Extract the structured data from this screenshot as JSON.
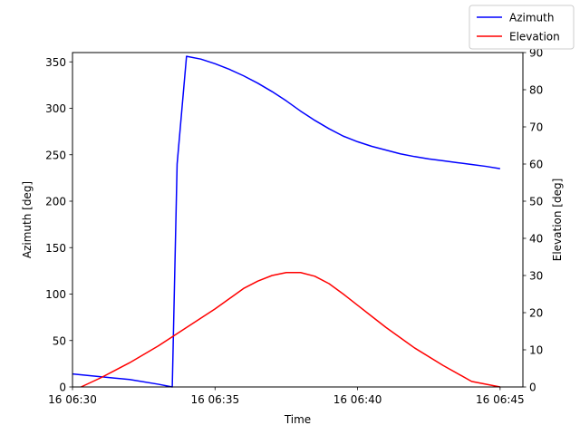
{
  "chart_data": {
    "type": "line",
    "title": "",
    "xlabel": "Time",
    "ylabel_left": "Azimuth [deg]",
    "ylabel_right": "Elevation [deg]",
    "xlim": [
      0,
      15.8
    ],
    "ylim_left": [
      0,
      360
    ],
    "ylim_right": [
      0,
      90
    ],
    "x_ticks": [
      {
        "value": 0,
        "label": "16 06:30"
      },
      {
        "value": 5,
        "label": "16 06:35"
      },
      {
        "value": 10,
        "label": "16 06:40"
      },
      {
        "value": 15,
        "label": "16 06:45"
      }
    ],
    "y_ticks_left": [
      0,
      50,
      100,
      150,
      200,
      250,
      300,
      350
    ],
    "y_ticks_right": [
      0,
      10,
      20,
      30,
      40,
      50,
      60,
      70,
      80,
      90
    ],
    "legend_position": "top-right",
    "grid": false,
    "series": [
      {
        "name": "Azimuth",
        "axis": "left",
        "color": "#0000ff",
        "x": [
          0,
          1,
          2,
          3,
          3.5,
          3.67,
          4.0,
          4.5,
          5.0,
          5.5,
          6.0,
          6.5,
          7.0,
          7.5,
          8.0,
          8.5,
          9.0,
          9.5,
          10.0,
          10.5,
          11.0,
          11.5,
          12.0,
          12.5,
          13.0,
          13.5,
          14.0,
          14.5,
          15.0
        ],
        "y": [
          14,
          11,
          8,
          3,
          0,
          240,
          356,
          353,
          348,
          342,
          335,
          327,
          318,
          308,
          297,
          287,
          278,
          270,
          264,
          259,
          255,
          251,
          248,
          245.5,
          243.5,
          241.5,
          239.5,
          237.5,
          235
        ]
      },
      {
        "name": "Elevation",
        "axis": "right",
        "color": "#ff0000",
        "x": [
          0.3,
          1,
          2,
          3,
          4,
          5,
          6,
          6.5,
          7,
          7.5,
          8,
          8.5,
          9,
          9.5,
          10,
          10.5,
          11,
          12,
          13,
          14,
          15
        ],
        "y": [
          0,
          2.5,
          6.5,
          11,
          16,
          21,
          26.5,
          28.5,
          30,
          30.8,
          30.8,
          29.8,
          27.8,
          25,
          22,
          19,
          16,
          10.5,
          5.8,
          1.5,
          0
        ]
      }
    ]
  }
}
